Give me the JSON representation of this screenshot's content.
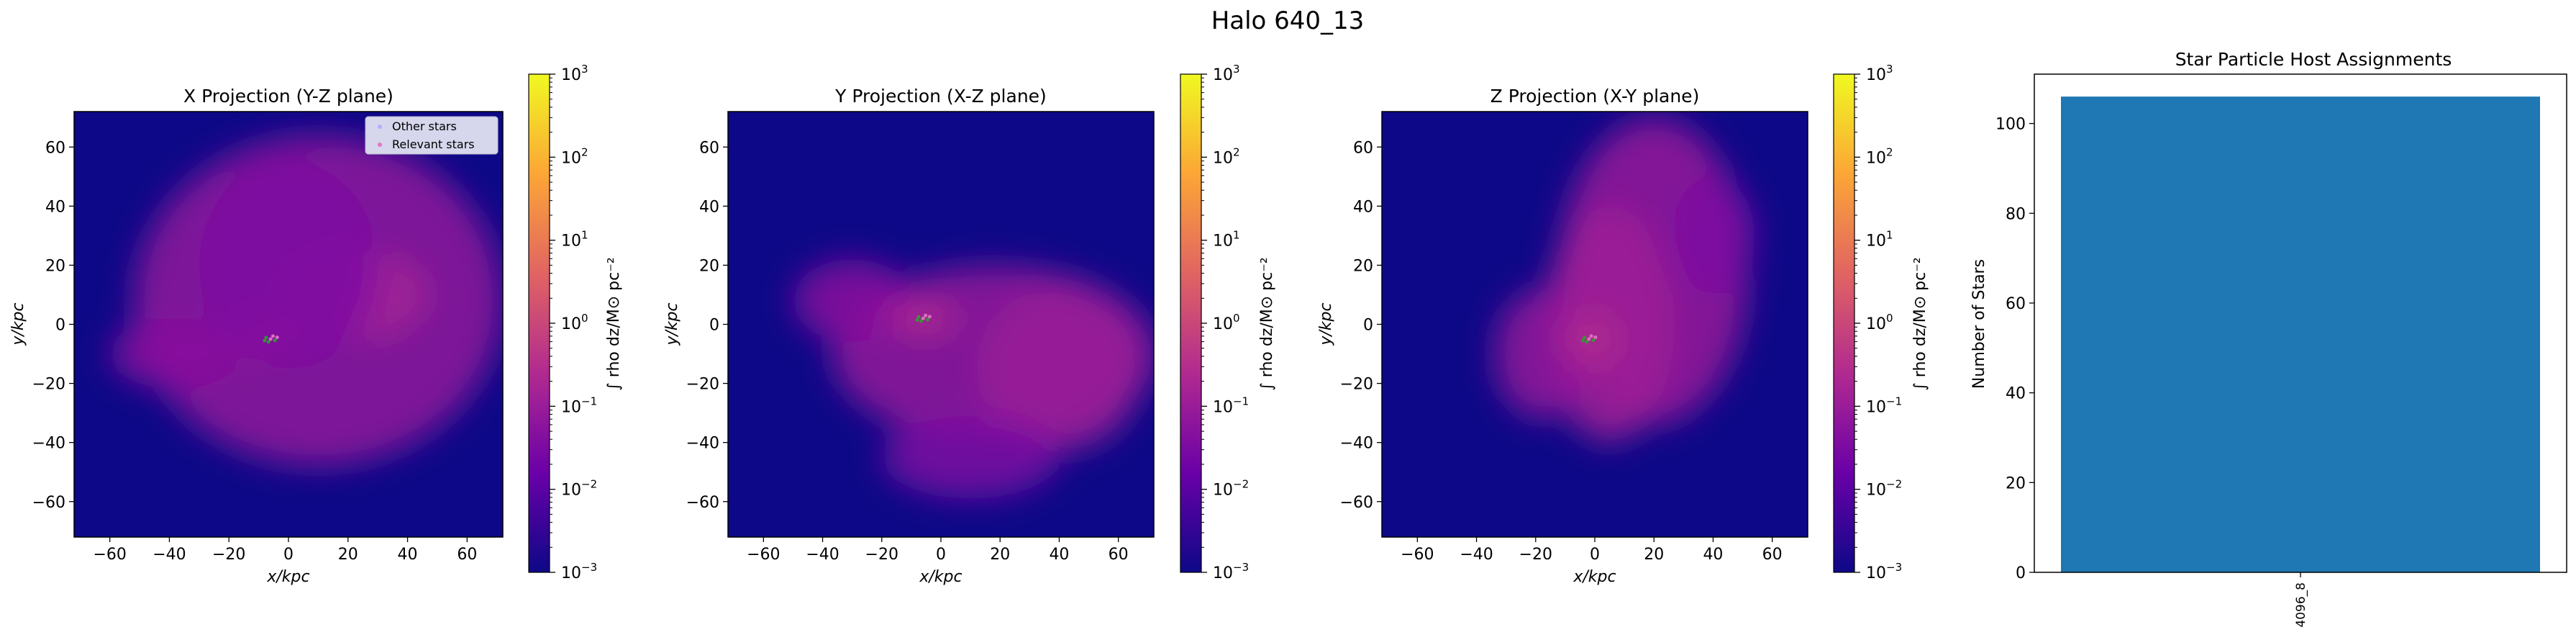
{
  "figure": {
    "suptitle": "Halo 640_13"
  },
  "colors": {
    "background": "#0d0887",
    "colormap": [
      "#0d0887",
      "#6a00a8",
      "#b12a90",
      "#e16462",
      "#fca636",
      "#f0f921"
    ],
    "bar": "#1f77b4",
    "other_stars": "#b0b0ff",
    "relevant_stars": "#e377c2",
    "legend_face": "#d6d6ec"
  },
  "colorbar": {
    "label": "∫ rho dz/M⊙ pc⁻²",
    "scale": "log",
    "range": [
      0.001,
      1000
    ],
    "tick_bases": [
      "10",
      "10",
      "10",
      "10",
      "10",
      "10",
      "10"
    ],
    "tick_exponents": [
      "−3",
      "−2",
      "−1",
      "0",
      "1",
      "2",
      "3"
    ]
  },
  "chart_data": [
    {
      "type": "heatmap",
      "title": "X Projection (Y-Z plane)",
      "xlabel": "x/kpc",
      "ylabel": "y/kpc",
      "xlim": [
        -72,
        72
      ],
      "ylim": [
        -72,
        72
      ],
      "xticks": [
        "−60",
        "−40",
        "−20",
        "0",
        "20",
        "40",
        "60"
      ],
      "yticks": [
        "−60",
        "−40",
        "−20",
        "0",
        "20",
        "40",
        "60"
      ],
      "legend": {
        "placement": "upper right",
        "entries": [
          "Other stars",
          "Relevant stars"
        ]
      },
      "stars_center": [
        -6,
        -5
      ],
      "blobs": [
        {
          "x": 10,
          "y": 8,
          "rx": 62,
          "ry": 56,
          "log": -1.15
        },
        {
          "x": -38,
          "y": -10,
          "rx": 22,
          "ry": 12,
          "log": -1.3
        },
        {
          "x": 22,
          "y": 10,
          "rx": 25,
          "ry": 16,
          "log": -0.85
        },
        {
          "x": -6,
          "y": -5,
          "rx": 12,
          "ry": 9,
          "log": -0.55
        },
        {
          "x": 0,
          "y": 20,
          "rx": 30,
          "ry": 35,
          "log": -1.5
        }
      ]
    },
    {
      "type": "heatmap",
      "title": "Y Projection (X-Z plane)",
      "xlabel": "x/kpc",
      "ylabel": "y/kpc",
      "xlim": [
        -72,
        72
      ],
      "ylim": [
        -72,
        72
      ],
      "xticks": [
        "−60",
        "−40",
        "−20",
        "0",
        "20",
        "40",
        "60"
      ],
      "yticks": [
        "−60",
        "−40",
        "−20",
        "0",
        "20",
        "40",
        "60"
      ],
      "stars_center": [
        -6,
        2
      ],
      "blobs": [
        {
          "x": 18,
          "y": -10,
          "rx": 55,
          "ry": 30,
          "log": -1.1
        },
        {
          "x": -30,
          "y": 8,
          "rx": 20,
          "ry": 14,
          "log": -1.3
        },
        {
          "x": 40,
          "y": -15,
          "rx": 28,
          "ry": 28,
          "log": -1.0
        },
        {
          "x": -6,
          "y": 2,
          "rx": 12,
          "ry": 6,
          "log": -0.6
        },
        {
          "x": 10,
          "y": -45,
          "rx": 30,
          "ry": 14,
          "log": -1.5
        }
      ]
    },
    {
      "type": "heatmap",
      "title": "Z Projection (X-Y plane)",
      "xlabel": "x/kpc",
      "ylabel": "y/kpc",
      "xlim": [
        -72,
        72
      ],
      "ylim": [
        -72,
        72
      ],
      "xticks": [
        "−60",
        "−40",
        "−20",
        "0",
        "20",
        "40",
        "60"
      ],
      "yticks": [
        "−60",
        "−40",
        "−20",
        "0",
        "20",
        "40",
        "60"
      ],
      "stars_center": [
        -2,
        -5
      ],
      "blobs": [
        {
          "x": 20,
          "y": 18,
          "rx": 32,
          "ry": 52,
          "log": -1.05
        },
        {
          "x": 5,
          "y": 0,
          "rx": 22,
          "ry": 40,
          "log": -0.9
        },
        {
          "x": -18,
          "y": -10,
          "rx": 16,
          "ry": 22,
          "log": -1.1
        },
        {
          "x": -2,
          "y": -5,
          "rx": 9,
          "ry": 9,
          "log": -0.55
        },
        {
          "x": 40,
          "y": 30,
          "rx": 14,
          "ry": 20,
          "log": -1.5
        }
      ]
    },
    {
      "type": "bar",
      "title": "Star Particle Host Assignments",
      "xlabel": "",
      "ylabel": "Number of Stars",
      "categories": [
        "4096_8"
      ],
      "values": [
        106
      ],
      "ylim": [
        0,
        111
      ],
      "yticks": [
        "0",
        "20",
        "40",
        "60",
        "80",
        "100"
      ]
    }
  ]
}
